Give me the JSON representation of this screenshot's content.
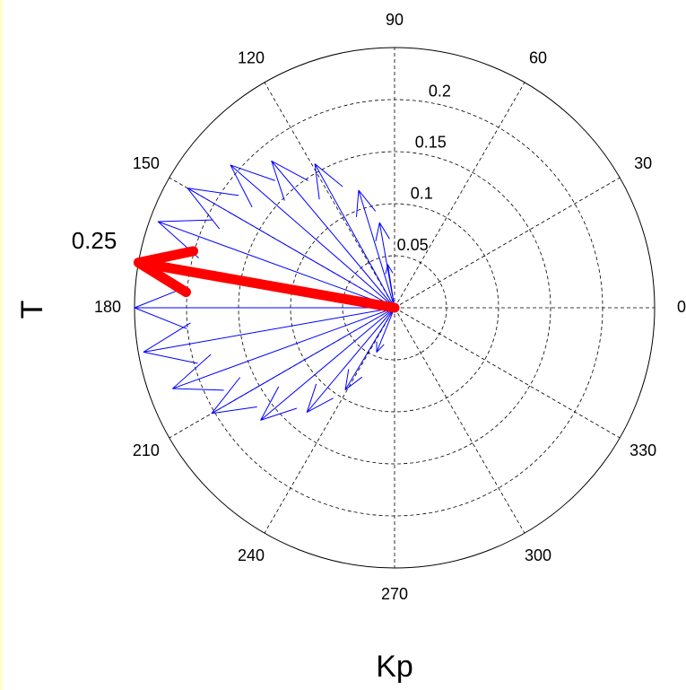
{
  "chart_data": {
    "type": "compass",
    "xlabel": "Kp",
    "ylabel": "T",
    "annotation": "0.25",
    "rlim": [
      0,
      0.25
    ],
    "rticks": [
      0.05,
      0.1,
      0.15,
      0.2
    ],
    "thetaticks": [
      0,
      30,
      60,
      90,
      120,
      150,
      180,
      210,
      240,
      270,
      300,
      330
    ],
    "grid": true,
    "series": [
      {
        "color": "#0000ff",
        "linewidth": 1,
        "theta": [
          99,
          100,
          107,
          119,
          130,
          139,
          150,
          160,
          180,
          190,
          200,
          210,
          220,
          230,
          239,
          248
        ],
        "r": [
          0.042,
          0.083,
          0.118,
          0.158,
          0.184,
          0.209,
          0.23,
          0.242,
          0.25,
          0.245,
          0.227,
          0.203,
          0.168,
          0.131,
          0.092,
          0.046
        ]
      },
      {
        "color": "#ff0000",
        "linewidth": 11,
        "theta": [
          170
        ],
        "r": [
          0.25
        ]
      }
    ]
  }
}
